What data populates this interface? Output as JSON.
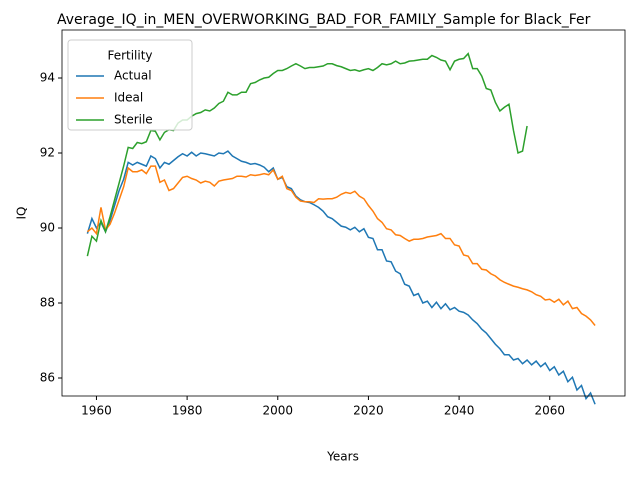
{
  "chart_data": {
    "type": "line",
    "title": "Average_IQ_in_MEN_OVERWORKING_BAD_FOR_FAMILY_Sample for Black_Fer",
    "x_label": "Years",
    "y_label": "IQ",
    "legend_title": "Fertility",
    "legend": "upper left",
    "xlim": [
      1952.4,
      2076.6
    ],
    "xticks": [
      1960,
      1980,
      2000,
      2020,
      2040,
      2060
    ],
    "ylim": [
      85.52,
      95.28
    ],
    "yticks": [
      86,
      88,
      90,
      92,
      94
    ],
    "x": [
      1958,
      1959,
      1960,
      1961,
      1962,
      1963,
      1964,
      1965,
      1966,
      1967,
      1968,
      1969,
      1970,
      1971,
      1972,
      1973,
      1974,
      1975,
      1976,
      1977,
      1978,
      1979,
      1980,
      1981,
      1982,
      1983,
      1984,
      1985,
      1986,
      1987,
      1988,
      1989,
      1990,
      1991,
      1992,
      1993,
      1994,
      1995,
      1996,
      1997,
      1998,
      1999,
      2000,
      2001,
      2002,
      2003,
      2004,
      2005,
      2006,
      2007,
      2008,
      2009,
      2010,
      2011,
      2012,
      2013,
      2014,
      2015,
      2016,
      2017,
      2018,
      2019,
      2020,
      2021,
      2022,
      2023,
      2024,
      2025,
      2026,
      2027,
      2028,
      2029,
      2030,
      2031,
      2032,
      2033,
      2034,
      2035,
      2036,
      2037,
      2038,
      2039,
      2040,
      2041,
      2042,
      2043,
      2044,
      2045,
      2046,
      2047,
      2048,
      2049,
      2050,
      2051,
      2052,
      2053,
      2054,
      2055,
      2056,
      2057,
      2058,
      2059,
      2060,
      2061,
      2062,
      2063,
      2064,
      2065,
      2066,
      2067,
      2068,
      2069,
      2070
    ],
    "series": [
      {
        "name": "Actual",
        "color": "#1f77b4",
        "values": [
          89.85,
          90.25,
          90.0,
          90.15,
          89.9,
          90.2,
          90.6,
          91.0,
          91.3,
          91.75,
          91.68,
          91.75,
          91.7,
          91.65,
          91.92,
          91.85,
          91.6,
          91.75,
          91.7,
          91.8,
          91.9,
          91.98,
          91.92,
          92.02,
          91.92,
          92.0,
          91.98,
          91.95,
          91.92,
          92.0,
          91.98,
          92.05,
          91.92,
          91.85,
          91.78,
          91.75,
          91.7,
          91.72,
          91.68,
          91.62,
          91.5,
          91.6,
          91.3,
          91.35,
          91.1,
          91.05,
          90.85,
          90.75,
          90.7,
          90.68,
          90.62,
          90.55,
          90.45,
          90.3,
          90.25,
          90.15,
          90.05,
          90.02,
          89.95,
          90.02,
          89.9,
          89.98,
          89.75,
          89.72,
          89.42,
          89.42,
          89.12,
          89.1,
          88.85,
          88.78,
          88.5,
          88.45,
          88.2,
          88.25,
          88.0,
          88.05,
          87.88,
          88.02,
          87.85,
          87.98,
          87.82,
          87.88,
          87.78,
          87.75,
          87.68,
          87.55,
          87.45,
          87.3,
          87.2,
          87.05,
          86.9,
          86.78,
          86.62,
          86.62,
          86.48,
          86.52,
          86.38,
          86.48,
          86.35,
          86.45,
          86.3,
          86.4,
          86.2,
          86.3,
          86.08,
          86.18,
          85.9,
          86.02,
          85.68,
          85.8,
          85.45,
          85.6,
          85.3
        ]
      },
      {
        "name": "Ideal",
        "color": "#ff7f0e",
        "values": [
          89.9,
          90.0,
          89.85,
          90.55,
          89.95,
          90.1,
          90.4,
          90.75,
          91.1,
          91.6,
          91.5,
          91.5,
          91.55,
          91.45,
          91.65,
          91.65,
          91.22,
          91.28,
          91.0,
          91.05,
          91.2,
          91.35,
          91.38,
          91.32,
          91.28,
          91.2,
          91.25,
          91.22,
          91.12,
          91.25,
          91.28,
          91.3,
          91.32,
          91.38,
          91.38,
          91.36,
          91.42,
          91.4,
          91.42,
          91.45,
          91.42,
          91.55,
          91.3,
          91.38,
          91.05,
          91.0,
          90.82,
          90.72,
          90.7,
          90.7,
          90.68,
          90.78,
          90.77,
          90.78,
          90.78,
          90.82,
          90.9,
          90.95,
          90.92,
          90.98,
          90.85,
          90.78,
          90.6,
          90.45,
          90.25,
          90.15,
          89.98,
          89.95,
          89.82,
          89.8,
          89.72,
          89.65,
          89.7,
          89.7,
          89.72,
          89.76,
          89.78,
          89.8,
          89.85,
          89.72,
          89.72,
          89.55,
          89.52,
          89.28,
          89.25,
          89.05,
          89.05,
          88.9,
          88.88,
          88.78,
          88.72,
          88.62,
          88.55,
          88.5,
          88.45,
          88.42,
          88.38,
          88.35,
          88.3,
          88.22,
          88.18,
          88.08,
          88.1,
          88.02,
          88.1,
          87.95,
          88.05,
          87.85,
          87.88,
          87.72,
          87.65,
          87.55,
          87.4
        ]
      },
      {
        "name": "Sterile",
        "color": "#2ca02c",
        "values": [
          89.25,
          89.78,
          89.65,
          90.2,
          89.9,
          90.3,
          90.75,
          91.2,
          91.65,
          92.15,
          92.12,
          92.28,
          92.25,
          92.3,
          92.6,
          92.58,
          92.35,
          92.55,
          92.62,
          92.6,
          92.8,
          92.88,
          92.88,
          92.98,
          93.05,
          93.08,
          93.15,
          93.12,
          93.2,
          93.32,
          93.38,
          93.62,
          93.55,
          93.55,
          93.62,
          93.62,
          93.85,
          93.88,
          93.95,
          94.0,
          94.02,
          94.12,
          94.2,
          94.2,
          94.25,
          94.32,
          94.38,
          94.32,
          94.25,
          94.28,
          94.28,
          94.3,
          94.32,
          94.38,
          94.38,
          94.33,
          94.3,
          94.25,
          94.2,
          94.22,
          94.18,
          94.22,
          94.25,
          94.2,
          94.28,
          94.38,
          94.35,
          94.38,
          94.45,
          94.38,
          94.4,
          94.45,
          94.46,
          94.48,
          94.5,
          94.5,
          94.6,
          94.55,
          94.48,
          94.45,
          94.22,
          94.45,
          94.5,
          94.52,
          94.65,
          94.25,
          94.25,
          94.05,
          93.72,
          93.68,
          93.35,
          93.12,
          93.22,
          93.3,
          92.6,
          92.0,
          92.05,
          92.72,
          null,
          null,
          null,
          null,
          null,
          null,
          null,
          null,
          null,
          null,
          null,
          null,
          null,
          null,
          null
        ]
      }
    ]
  }
}
